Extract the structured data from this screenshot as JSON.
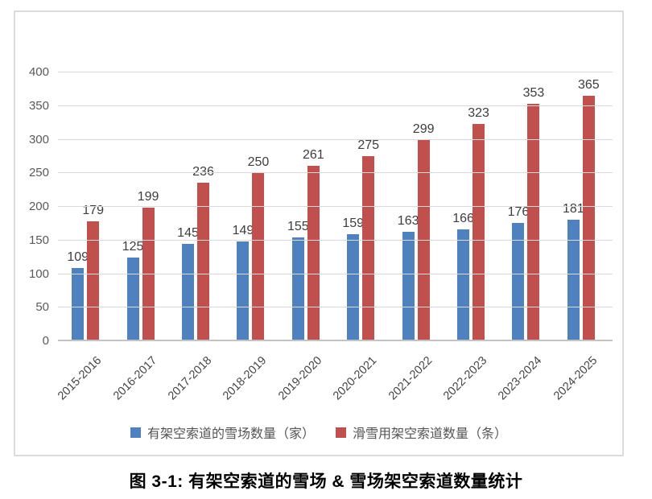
{
  "figure": {
    "caption": "图 3-1: 有架空索道的雪场 & 雪场架空索道数量统计"
  },
  "chart_data": {
    "type": "bar",
    "title": "",
    "categories": [
      "2015-2016",
      "2016-2017",
      "2017-2018",
      "2018-2019",
      "2019-2020",
      "2020-2021",
      "2021-2022",
      "2022-2023",
      "2023-2024",
      "2024-2025"
    ],
    "series": [
      {
        "name": "有架空索道的雪场数量（家）",
        "color": "#4e81bd",
        "values": [
          109,
          125,
          145,
          149,
          155,
          159,
          163,
          166,
          176,
          181
        ]
      },
      {
        "name": "滑雪用架空索道数量（条）",
        "color": "#c0504d",
        "values": [
          179,
          199,
          236,
          250,
          261,
          275,
          299,
          323,
          353,
          365
        ]
      }
    ],
    "xlabel": "",
    "ylabel": "",
    "ylim": [
      0,
      400
    ],
    "yticks": [
      0,
      50,
      100,
      150,
      200,
      250,
      300,
      350,
      400
    ],
    "grid": "horizontal",
    "legend_position": "bottom",
    "data_labels": true,
    "x_tick_rotation": -45
  },
  "colors": {
    "series_blue": "#4e81bd",
    "series_red": "#c0504d",
    "gridline": "#d9d9d9",
    "axis_line": "#c3c3c3",
    "chart_border": "#dbdbdb",
    "tick_text": "#595959",
    "value_text": "#3d3d3d",
    "caption_text": "#000000"
  }
}
